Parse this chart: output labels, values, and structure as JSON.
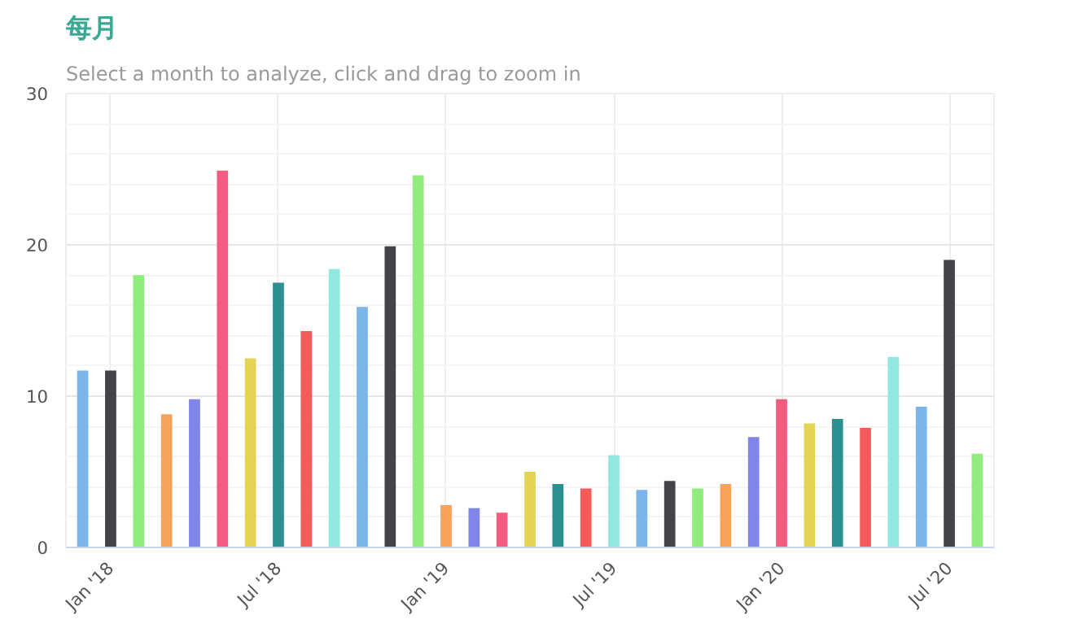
{
  "chart_data": {
    "type": "bar",
    "title": "每月",
    "subtitle": "Select a month to analyze, click and drag to zoom in",
    "categories": [
      null,
      "Jan '18",
      null,
      null,
      null,
      null,
      null,
      "Jul '18",
      null,
      null,
      null,
      null,
      null,
      "Jan '19",
      null,
      null,
      null,
      null,
      null,
      "Jul '19",
      null,
      null,
      null,
      null,
      null,
      "Jan '20",
      null,
      null,
      null,
      null,
      null,
      "Jul '20",
      null
    ],
    "values": [
      11.7,
      11.7,
      18.0,
      8.8,
      9.8,
      24.9,
      12.5,
      17.5,
      14.3,
      18.4,
      15.9,
      19.9,
      24.6,
      2.8,
      2.6,
      2.3,
      5.0,
      4.2,
      3.9,
      6.1,
      3.8,
      4.4,
      3.9,
      4.2,
      7.3,
      9.8,
      8.2,
      8.5,
      7.9,
      12.6,
      9.3,
      19.0,
      6.2
    ],
    "colors": [
      "#7cb5ec",
      "#434348",
      "#90ed7d",
      "#f7a35c",
      "#8085e9",
      "#f15c80",
      "#e4d354",
      "#2b908f",
      "#f45b5b",
      "#91e8e1",
      "#7cb5ec",
      "#434348",
      "#90ed7d",
      "#f7a35c",
      "#8085e9",
      "#f15c80",
      "#e4d354",
      "#2b908f",
      "#f45b5b",
      "#91e8e1",
      "#7cb5ec",
      "#434348",
      "#90ed7d",
      "#f7a35c",
      "#8085e9",
      "#f15c80",
      "#e4d354",
      "#2b908f",
      "#f45b5b",
      "#91e8e1",
      "#7cb5ec",
      "#434348",
      "#90ed7d"
    ],
    "ylim": [
      0,
      30
    ],
    "yticks": [
      0,
      10,
      20,
      30
    ],
    "grid": true
  }
}
